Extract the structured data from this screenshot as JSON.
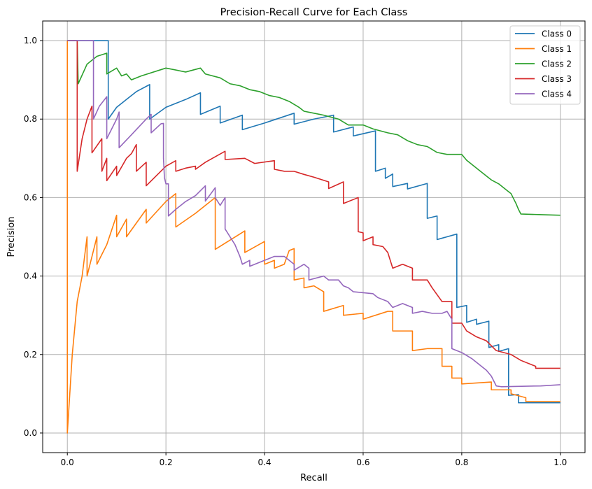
{
  "chart_data": {
    "type": "line",
    "title": "Precision-Recall Curve for Each Class",
    "xlabel": "Recall",
    "ylabel": "Precision",
    "xlim": [
      -0.05,
      1.05
    ],
    "ylim": [
      -0.05,
      1.05
    ],
    "xticks": [
      0.0,
      0.2,
      0.4,
      0.6,
      0.8,
      1.0
    ],
    "xtick_labels": [
      "0.0",
      "0.2",
      "0.4",
      "0.6",
      "0.8",
      "1.0"
    ],
    "yticks": [
      0.0,
      0.2,
      0.4,
      0.6,
      0.8,
      1.0
    ],
    "ytick_labels": [
      "0.0",
      "0.2",
      "0.4",
      "0.6",
      "0.8",
      "1.0"
    ],
    "grid": true,
    "legend_position": "top-right",
    "series": [
      {
        "name": "Class 0",
        "color": "#1f77b4",
        "points": [
          [
            0.0,
            1.0
          ],
          [
            0.083,
            1.0
          ],
          [
            0.083,
            0.8
          ],
          [
            0.1,
            0.83
          ],
          [
            0.12,
            0.85
          ],
          [
            0.14,
            0.87
          ],
          [
            0.167,
            0.888
          ],
          [
            0.167,
            0.8
          ],
          [
            0.2,
            0.83
          ],
          [
            0.24,
            0.85
          ],
          [
            0.27,
            0.867
          ],
          [
            0.27,
            0.812
          ],
          [
            0.31,
            0.833
          ],
          [
            0.31,
            0.79
          ],
          [
            0.355,
            0.81
          ],
          [
            0.355,
            0.773
          ],
          [
            0.4,
            0.79
          ],
          [
            0.46,
            0.815
          ],
          [
            0.46,
            0.787
          ],
          [
            0.5,
            0.8
          ],
          [
            0.54,
            0.81
          ],
          [
            0.54,
            0.767
          ],
          [
            0.58,
            0.78
          ],
          [
            0.58,
            0.757
          ],
          [
            0.625,
            0.77
          ],
          [
            0.625,
            0.667
          ],
          [
            0.645,
            0.675
          ],
          [
            0.645,
            0.649
          ],
          [
            0.66,
            0.66
          ],
          [
            0.66,
            0.628
          ],
          [
            0.69,
            0.636
          ],
          [
            0.69,
            0.622
          ],
          [
            0.73,
            0.636
          ],
          [
            0.73,
            0.547
          ],
          [
            0.75,
            0.553
          ],
          [
            0.75,
            0.493
          ],
          [
            0.79,
            0.507
          ],
          [
            0.79,
            0.32
          ],
          [
            0.81,
            0.325
          ],
          [
            0.81,
            0.282
          ],
          [
            0.83,
            0.29
          ],
          [
            0.83,
            0.277
          ],
          [
            0.855,
            0.285
          ],
          [
            0.855,
            0.218
          ],
          [
            0.875,
            0.225
          ],
          [
            0.875,
            0.208
          ],
          [
            0.895,
            0.215
          ],
          [
            0.895,
            0.096
          ],
          [
            0.915,
            0.098
          ],
          [
            0.915,
            0.077
          ],
          [
            1.0,
            0.077
          ]
        ]
      },
      {
        "name": "Class 1",
        "color": "#ff7f0e",
        "points": [
          [
            0.0,
            1.0
          ],
          [
            0.0,
            0.0
          ],
          [
            0.005,
            0.1
          ],
          [
            0.01,
            0.2
          ],
          [
            0.02,
            0.335
          ],
          [
            0.03,
            0.4
          ],
          [
            0.04,
            0.5
          ],
          [
            0.04,
            0.4
          ],
          [
            0.05,
            0.45
          ],
          [
            0.06,
            0.5
          ],
          [
            0.06,
            0.43
          ],
          [
            0.08,
            0.48
          ],
          [
            0.1,
            0.555
          ],
          [
            0.1,
            0.5
          ],
          [
            0.12,
            0.545
          ],
          [
            0.12,
            0.5
          ],
          [
            0.16,
            0.57
          ],
          [
            0.16,
            0.535
          ],
          [
            0.2,
            0.59
          ],
          [
            0.22,
            0.61
          ],
          [
            0.22,
            0.525
          ],
          [
            0.26,
            0.56
          ],
          [
            0.3,
            0.6
          ],
          [
            0.3,
            0.468
          ],
          [
            0.36,
            0.515
          ],
          [
            0.36,
            0.46
          ],
          [
            0.4,
            0.488
          ],
          [
            0.4,
            0.43
          ],
          [
            0.42,
            0.44
          ],
          [
            0.42,
            0.42
          ],
          [
            0.44,
            0.43
          ],
          [
            0.45,
            0.465
          ],
          [
            0.46,
            0.47
          ],
          [
            0.46,
            0.39
          ],
          [
            0.48,
            0.395
          ],
          [
            0.48,
            0.37
          ],
          [
            0.5,
            0.375
          ],
          [
            0.52,
            0.36
          ],
          [
            0.52,
            0.31
          ],
          [
            0.56,
            0.325
          ],
          [
            0.56,
            0.3
          ],
          [
            0.6,
            0.305
          ],
          [
            0.6,
            0.29
          ],
          [
            0.65,
            0.31
          ],
          [
            0.66,
            0.31
          ],
          [
            0.66,
            0.26
          ],
          [
            0.7,
            0.26
          ],
          [
            0.7,
            0.21
          ],
          [
            0.73,
            0.215
          ],
          [
            0.76,
            0.215
          ],
          [
            0.76,
            0.17
          ],
          [
            0.78,
            0.17
          ],
          [
            0.78,
            0.14
          ],
          [
            0.8,
            0.14
          ],
          [
            0.8,
            0.125
          ],
          [
            0.86,
            0.13
          ],
          [
            0.86,
            0.11
          ],
          [
            0.9,
            0.11
          ],
          [
            0.9,
            0.1
          ],
          [
            0.93,
            0.09
          ],
          [
            0.93,
            0.08
          ],
          [
            1.0,
            0.08
          ]
        ]
      },
      {
        "name": "Class 2",
        "color": "#2ca02c",
        "points": [
          [
            0.0,
            1.0
          ],
          [
            0.02,
            1.0
          ],
          [
            0.022,
            0.89
          ],
          [
            0.04,
            0.94
          ],
          [
            0.06,
            0.96
          ],
          [
            0.08,
            0.968
          ],
          [
            0.08,
            0.915
          ],
          [
            0.1,
            0.93
          ],
          [
            0.11,
            0.91
          ],
          [
            0.12,
            0.915
          ],
          [
            0.13,
            0.9
          ],
          [
            0.15,
            0.91
          ],
          [
            0.2,
            0.93
          ],
          [
            0.24,
            0.92
          ],
          [
            0.27,
            0.93
          ],
          [
            0.28,
            0.915
          ],
          [
            0.31,
            0.905
          ],
          [
            0.33,
            0.89
          ],
          [
            0.35,
            0.885
          ],
          [
            0.37,
            0.875
          ],
          [
            0.39,
            0.87
          ],
          [
            0.41,
            0.86
          ],
          [
            0.43,
            0.855
          ],
          [
            0.45,
            0.845
          ],
          [
            0.47,
            0.83
          ],
          [
            0.48,
            0.82
          ],
          [
            0.5,
            0.815
          ],
          [
            0.52,
            0.81
          ],
          [
            0.55,
            0.8
          ],
          [
            0.57,
            0.785
          ],
          [
            0.6,
            0.785
          ],
          [
            0.62,
            0.775
          ],
          [
            0.65,
            0.765
          ],
          [
            0.67,
            0.76
          ],
          [
            0.69,
            0.745
          ],
          [
            0.71,
            0.735
          ],
          [
            0.73,
            0.73
          ],
          [
            0.75,
            0.715
          ],
          [
            0.77,
            0.71
          ],
          [
            0.8,
            0.71
          ],
          [
            0.81,
            0.695
          ],
          [
            0.83,
            0.675
          ],
          [
            0.84,
            0.665
          ],
          [
            0.86,
            0.645
          ],
          [
            0.875,
            0.635
          ],
          [
            0.89,
            0.62
          ],
          [
            0.9,
            0.61
          ],
          [
            0.91,
            0.585
          ],
          [
            0.915,
            0.57
          ],
          [
            0.92,
            0.558
          ],
          [
            1.0,
            0.555
          ]
        ]
      },
      {
        "name": "Class 3",
        "color": "#d62728",
        "points": [
          [
            0.0,
            1.0
          ],
          [
            0.02,
            1.0
          ],
          [
            0.02,
            0.667
          ],
          [
            0.03,
            0.75
          ],
          [
            0.04,
            0.8
          ],
          [
            0.05,
            0.833
          ],
          [
            0.05,
            0.714
          ],
          [
            0.07,
            0.75
          ],
          [
            0.07,
            0.667
          ],
          [
            0.08,
            0.7
          ],
          [
            0.08,
            0.643
          ],
          [
            0.1,
            0.68
          ],
          [
            0.1,
            0.656
          ],
          [
            0.12,
            0.7
          ],
          [
            0.13,
            0.712
          ],
          [
            0.14,
            0.735
          ],
          [
            0.14,
            0.667
          ],
          [
            0.16,
            0.69
          ],
          [
            0.16,
            0.63
          ],
          [
            0.18,
            0.655
          ],
          [
            0.2,
            0.68
          ],
          [
            0.22,
            0.694
          ],
          [
            0.22,
            0.667
          ],
          [
            0.24,
            0.675
          ],
          [
            0.26,
            0.68
          ],
          [
            0.26,
            0.672
          ],
          [
            0.28,
            0.69
          ],
          [
            0.32,
            0.718
          ],
          [
            0.32,
            0.697
          ],
          [
            0.36,
            0.7
          ],
          [
            0.38,
            0.687
          ],
          [
            0.42,
            0.694
          ],
          [
            0.42,
            0.672
          ],
          [
            0.44,
            0.667
          ],
          [
            0.46,
            0.667
          ],
          [
            0.48,
            0.659
          ],
          [
            0.5,
            0.652
          ],
          [
            0.53,
            0.64
          ],
          [
            0.53,
            0.623
          ],
          [
            0.56,
            0.64
          ],
          [
            0.56,
            0.585
          ],
          [
            0.59,
            0.6
          ],
          [
            0.59,
            0.513
          ],
          [
            0.6,
            0.51
          ],
          [
            0.6,
            0.49
          ],
          [
            0.62,
            0.5
          ],
          [
            0.62,
            0.48
          ],
          [
            0.64,
            0.475
          ],
          [
            0.65,
            0.46
          ],
          [
            0.66,
            0.42
          ],
          [
            0.68,
            0.43
          ],
          [
            0.7,
            0.42
          ],
          [
            0.7,
            0.39
          ],
          [
            0.72,
            0.39
          ],
          [
            0.73,
            0.39
          ],
          [
            0.74,
            0.37
          ],
          [
            0.76,
            0.335
          ],
          [
            0.78,
            0.335
          ],
          [
            0.78,
            0.28
          ],
          [
            0.8,
            0.28
          ],
          [
            0.81,
            0.26
          ],
          [
            0.83,
            0.245
          ],
          [
            0.85,
            0.235
          ],
          [
            0.87,
            0.21
          ],
          [
            0.9,
            0.2
          ],
          [
            0.92,
            0.185
          ],
          [
            0.95,
            0.17
          ],
          [
            0.95,
            0.165
          ],
          [
            1.0,
            0.165
          ]
        ]
      },
      {
        "name": "Class 4",
        "color": "#9467bd",
        "points": [
          [
            0.0,
            1.0
          ],
          [
            0.053,
            1.0
          ],
          [
            0.053,
            0.8
          ],
          [
            0.065,
            0.833
          ],
          [
            0.08,
            0.857
          ],
          [
            0.08,
            0.75
          ],
          [
            0.1,
            0.8
          ],
          [
            0.105,
            0.818
          ],
          [
            0.105,
            0.727
          ],
          [
            0.13,
            0.76
          ],
          [
            0.16,
            0.8
          ],
          [
            0.17,
            0.812
          ],
          [
            0.17,
            0.765
          ],
          [
            0.19,
            0.788
          ],
          [
            0.195,
            0.789
          ],
          [
            0.195,
            0.7
          ],
          [
            0.197,
            0.65
          ],
          [
            0.2,
            0.635
          ],
          [
            0.205,
            0.635
          ],
          [
            0.205,
            0.553
          ],
          [
            0.22,
            0.57
          ],
          [
            0.24,
            0.59
          ],
          [
            0.26,
            0.605
          ],
          [
            0.28,
            0.63
          ],
          [
            0.28,
            0.591
          ],
          [
            0.3,
            0.625
          ],
          [
            0.3,
            0.6
          ],
          [
            0.31,
            0.58
          ],
          [
            0.32,
            0.6
          ],
          [
            0.32,
            0.52
          ],
          [
            0.33,
            0.5
          ],
          [
            0.34,
            0.48
          ],
          [
            0.35,
            0.45
          ],
          [
            0.355,
            0.43
          ],
          [
            0.37,
            0.44
          ],
          [
            0.37,
            0.425
          ],
          [
            0.4,
            0.44
          ],
          [
            0.42,
            0.45
          ],
          [
            0.44,
            0.45
          ],
          [
            0.45,
            0.44
          ],
          [
            0.46,
            0.43
          ],
          [
            0.46,
            0.415
          ],
          [
            0.48,
            0.43
          ],
          [
            0.49,
            0.42
          ],
          [
            0.49,
            0.39
          ],
          [
            0.52,
            0.4
          ],
          [
            0.53,
            0.39
          ],
          [
            0.55,
            0.39
          ],
          [
            0.56,
            0.375
          ],
          [
            0.57,
            0.37
          ],
          [
            0.58,
            0.36
          ],
          [
            0.62,
            0.355
          ],
          [
            0.63,
            0.345
          ],
          [
            0.65,
            0.335
          ],
          [
            0.66,
            0.32
          ],
          [
            0.68,
            0.33
          ],
          [
            0.7,
            0.32
          ],
          [
            0.7,
            0.305
          ],
          [
            0.72,
            0.31
          ],
          [
            0.74,
            0.305
          ],
          [
            0.76,
            0.305
          ],
          [
            0.77,
            0.31
          ],
          [
            0.78,
            0.29
          ],
          [
            0.78,
            0.215
          ],
          [
            0.8,
            0.205
          ],
          [
            0.82,
            0.19
          ],
          [
            0.83,
            0.18
          ],
          [
            0.84,
            0.17
          ],
          [
            0.85,
            0.16
          ],
          [
            0.86,
            0.145
          ],
          [
            0.87,
            0.12
          ],
          [
            0.88,
            0.118
          ],
          [
            0.96,
            0.12
          ],
          [
            1.0,
            0.123
          ]
        ]
      }
    ]
  }
}
